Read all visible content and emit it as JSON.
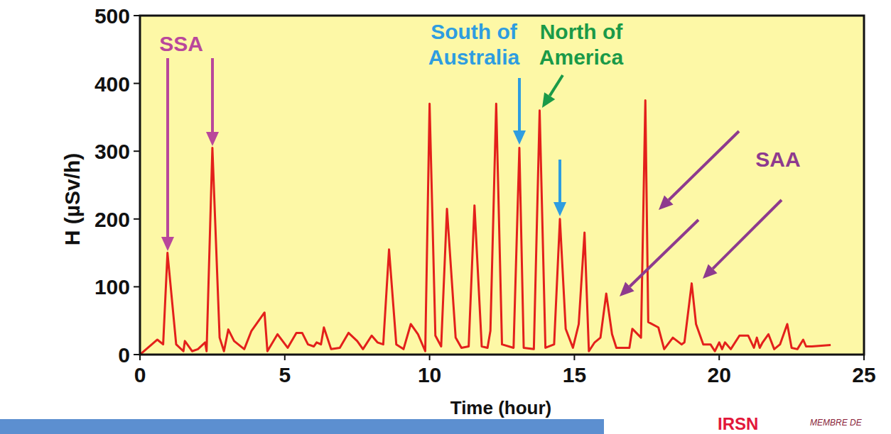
{
  "chart_data": {
    "type": "line",
    "x_label": "Time (hour)",
    "y_label": "H (µSv/h)",
    "color": "#e3201b",
    "grid": false,
    "xlim": [
      0,
      25
    ],
    "xticks": [
      0,
      5,
      10,
      15,
      20,
      25
    ],
    "ylim": [
      0,
      500
    ],
    "yticks": [
      0,
      100,
      200,
      300,
      400,
      500
    ],
    "x": [
      0,
      0.6,
      0.8,
      0.95,
      1.25,
      1.5,
      1.55,
      1.8,
      2.0,
      2.25,
      2.3,
      2.5,
      2.75,
      2.9,
      3.05,
      3.25,
      3.6,
      3.85,
      4.3,
      4.4,
      4.75,
      5.1,
      5.4,
      5.6,
      5.8,
      6.0,
      6.1,
      6.25,
      6.35,
      6.6,
      6.9,
      7.2,
      7.5,
      7.7,
      8.0,
      8.2,
      8.4,
      8.6,
      8.85,
      9.1,
      9.35,
      9.6,
      9.85,
      10.0,
      10.2,
      10.4,
      10.6,
      10.9,
      11.1,
      11.35,
      11.55,
      11.8,
      12.0,
      12.1,
      12.3,
      12.5,
      12.9,
      13.1,
      13.25,
      13.6,
      13.8,
      14.0,
      14.3,
      14.5,
      14.7,
      14.95,
      15.15,
      15.35,
      15.5,
      15.7,
      15.9,
      16.1,
      16.3,
      16.45,
      16.9,
      17.0,
      17.3,
      17.45,
      17.55,
      17.9,
      18.1,
      18.4,
      18.7,
      18.8,
      19.05,
      19.2,
      19.45,
      19.7,
      19.85,
      20.0,
      20.1,
      20.2,
      20.4,
      20.7,
      21.0,
      21.2,
      21.3,
      21.4,
      21.5,
      21.7,
      21.9,
      22.1,
      22.35,
      22.5,
      22.7,
      22.9,
      23.0,
      23.2,
      23.85
    ],
    "values": [
      0,
      22,
      15,
      150,
      15,
      5,
      20,
      5,
      8,
      18,
      5,
      305,
      25,
      5,
      37,
      20,
      8,
      35,
      62,
      5,
      30,
      10,
      32,
      32,
      15,
      12,
      18,
      15,
      40,
      8,
      10,
      32,
      20,
      8,
      28,
      18,
      15,
      155,
      15,
      8,
      45,
      30,
      5,
      370,
      28,
      12,
      215,
      25,
      10,
      12,
      220,
      12,
      10,
      35,
      370,
      15,
      10,
      305,
      10,
      8,
      360,
      10,
      15,
      200,
      38,
      10,
      45,
      180,
      5,
      18,
      25,
      90,
      30,
      10,
      10,
      38,
      25,
      375,
      48,
      40,
      8,
      25,
      15,
      18,
      105,
      45,
      15,
      15,
      5,
      18,
      8,
      18,
      8,
      28,
      28,
      10,
      25,
      10,
      18,
      30,
      8,
      15,
      45,
      10,
      8,
      22,
      12,
      12,
      14
    ],
    "annotations": [
      {
        "text": "SSA",
        "color": "#b9479b"
      },
      {
        "text": "South of Australia",
        "color": "#2e9de0"
      },
      {
        "text": "North of America",
        "color": "#1a9a48"
      },
      {
        "text": "SAA",
        "color": "#8e3a8e"
      }
    ]
  },
  "footer": {
    "logo": "IRSN",
    "member": "MEMBRE DE"
  }
}
